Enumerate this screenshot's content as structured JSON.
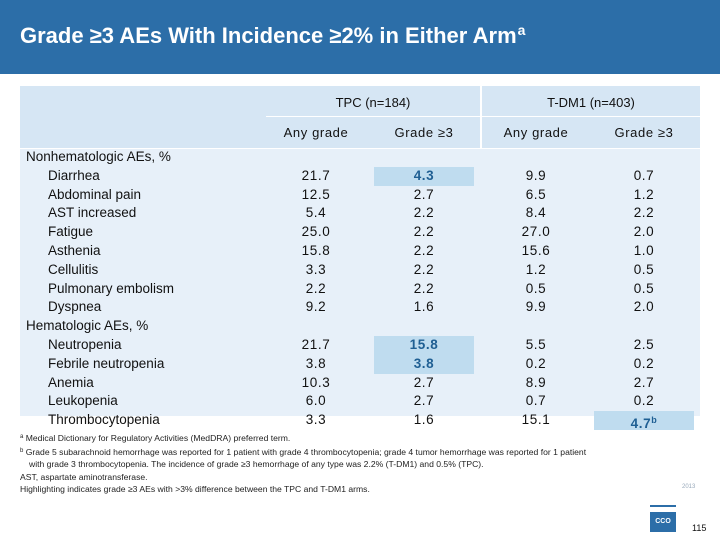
{
  "title": {
    "text": "Grade ≥3 AEs With Incidence ≥2% in Either Arm",
    "superscript": "a"
  },
  "groups": [
    "TPC (n=184)",
    "T-DM1 (n=403)"
  ],
  "subheaders": [
    "Any grade",
    "Grade ≥3",
    "Any grade",
    "Grade ≥3"
  ],
  "sections": [
    {
      "heading": "Nonhematologic AEs, %",
      "rows": [
        {
          "label": "Diarrhea",
          "values": [
            "21.7",
            "4.3",
            "9.9",
            "0.7"
          ],
          "hl": [
            false,
            true,
            false,
            false
          ]
        },
        {
          "label": "Abdominal pain",
          "values": [
            "12.5",
            "2.7",
            "6.5",
            "1.2"
          ],
          "hl": [
            false,
            false,
            false,
            false
          ]
        },
        {
          "label": "AST increased",
          "values": [
            "5.4",
            "2.2",
            "8.4",
            "2.2"
          ],
          "hl": [
            false,
            false,
            false,
            false
          ]
        },
        {
          "label": "Fatigue",
          "values": [
            "25.0",
            "2.2",
            "27.0",
            "2.0"
          ],
          "hl": [
            false,
            false,
            false,
            false
          ]
        },
        {
          "label": "Asthenia",
          "values": [
            "15.8",
            "2.2",
            "15.6",
            "1.0"
          ],
          "hl": [
            false,
            false,
            false,
            false
          ]
        },
        {
          "label": "Cellulitis",
          "values": [
            "3.3",
            "2.2",
            "1.2",
            "0.5"
          ],
          "hl": [
            false,
            false,
            false,
            false
          ]
        },
        {
          "label": "Pulmonary embolism",
          "values": [
            "2.2",
            "2.2",
            "0.5",
            "0.5"
          ],
          "hl": [
            false,
            false,
            false,
            false
          ]
        },
        {
          "label": "Dyspnea",
          "values": [
            "9.2",
            "1.6",
            "9.9",
            "2.0"
          ],
          "hl": [
            false,
            false,
            false,
            false
          ]
        }
      ]
    },
    {
      "heading": "Hematologic AEs, %",
      "rows": [
        {
          "label": "Neutropenia",
          "values": [
            "21.7",
            "15.8",
            "5.5",
            "2.5"
          ],
          "hl": [
            false,
            true,
            false,
            false
          ]
        },
        {
          "label": "Febrile neutropenia",
          "values": [
            "3.8",
            "3.8",
            "0.2",
            "0.2"
          ],
          "hl": [
            false,
            true,
            false,
            false
          ]
        },
        {
          "label": "Anemia",
          "values": [
            "10.3",
            "2.7",
            "8.9",
            "2.7"
          ],
          "hl": [
            false,
            false,
            false,
            false
          ]
        },
        {
          "label": "Leukopenia",
          "values": [
            "6.0",
            "2.7",
            "0.7",
            "0.2"
          ],
          "hl": [
            false,
            false,
            false,
            false
          ]
        },
        {
          "label": "Thrombocytopenia",
          "values": [
            "3.3",
            "1.6",
            "15.1",
            "4.7"
          ],
          "hl": [
            false,
            false,
            false,
            true
          ],
          "sup": [
            null,
            null,
            null,
            "b"
          ]
        }
      ]
    }
  ],
  "footnotes": [
    {
      "marker": "a",
      "text": "Medical Dictionary for Regulatory Activities (MedDRA) preferred term."
    },
    {
      "marker": "b",
      "text": "Grade 5 subarachnoid hemorrhage was reported for 1 patient with grade 4 thrombocytopenia; grade 4 tumor hemorrhage was reported for 1 patient"
    },
    {
      "marker": "",
      "text": "with grade 3 thrombocytopenia. The incidence of grade ≥3 hemorrhage of any type was 2.2% (T-DM1) and 0.5% (TPC).",
      "indent": true
    },
    {
      "marker": "",
      "text": "AST, aspartate aminotransferase."
    },
    {
      "marker": "",
      "text": "Highlighting indicates grade ≥3 AEs with >3% difference between the TPC and T-DM1 arms."
    }
  ],
  "footer": {
    "small_mark": "2013",
    "logo_text": "CCO",
    "page_number": "115"
  },
  "colors": {
    "title_bar": "#2c6ea8",
    "band_head": "#d6e6f4",
    "band_body": "#e7f0f9",
    "highlight": "#bfdcef"
  }
}
